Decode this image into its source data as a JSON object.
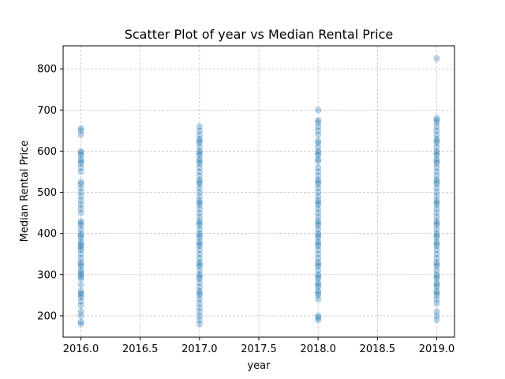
{
  "chart_data": {
    "type": "scatter",
    "title": "Scatter Plot of year vs Median Rental Price",
    "xlabel": "year",
    "ylabel": "Median Rental Price",
    "xlim": [
      1995.85,
      2019.15
    ],
    "ylim": [
      148,
      856
    ],
    "xlim_note": "",
    "x_ticks": [
      2016.0,
      2016.5,
      2017.0,
      2017.5,
      2018.0,
      2018.5,
      2019.0
    ],
    "x_tick_labels": [
      "2016.0",
      "2016.5",
      "2017.0",
      "2017.5",
      "2018.0",
      "2018.5",
      "2019.0"
    ],
    "y_ticks": [
      200,
      300,
      400,
      500,
      600,
      700,
      800
    ],
    "y_tick_labels": [
      "200",
      "300",
      "400",
      "500",
      "600",
      "700",
      "800"
    ],
    "grid": true,
    "marker_color": "#1f77b4",
    "marker_alpha": 0.3,
    "series": [
      {
        "points": [
          [
            2016,
            180
          ],
          [
            2016,
            185
          ],
          [
            2016,
            200
          ],
          [
            2016,
            210
          ],
          [
            2016,
            225
          ],
          [
            2016,
            235
          ],
          [
            2016,
            245
          ],
          [
            2016,
            250
          ],
          [
            2016,
            255
          ],
          [
            2016,
            260
          ],
          [
            2016,
            275
          ],
          [
            2016,
            290
          ],
          [
            2016,
            295
          ],
          [
            2016,
            300
          ],
          [
            2016,
            305
          ],
          [
            2016,
            310
          ],
          [
            2016,
            320
          ],
          [
            2016,
            325
          ],
          [
            2016,
            330
          ],
          [
            2016,
            340
          ],
          [
            2016,
            350
          ],
          [
            2016,
            360
          ],
          [
            2016,
            365
          ],
          [
            2016,
            370
          ],
          [
            2016,
            375
          ],
          [
            2016,
            380
          ],
          [
            2016,
            390
          ],
          [
            2016,
            395
          ],
          [
            2016,
            400
          ],
          [
            2016,
            410
          ],
          [
            2016,
            420
          ],
          [
            2016,
            425
          ],
          [
            2016,
            430
          ],
          [
            2016,
            450
          ],
          [
            2016,
            460
          ],
          [
            2016,
            470
          ],
          [
            2016,
            480
          ],
          [
            2016,
            490
          ],
          [
            2016,
            500
          ],
          [
            2016,
            510
          ],
          [
            2016,
            520
          ],
          [
            2016,
            525
          ],
          [
            2016,
            550
          ],
          [
            2016,
            560
          ],
          [
            2016,
            570
          ],
          [
            2016,
            575
          ],
          [
            2016,
            580
          ],
          [
            2016,
            590
          ],
          [
            2016,
            595
          ],
          [
            2016,
            600
          ],
          [
            2016,
            640
          ],
          [
            2016,
            650
          ],
          [
            2016,
            655
          ],
          [
            2017,
            180
          ],
          [
            2017,
            190
          ],
          [
            2017,
            200
          ],
          [
            2017,
            210
          ],
          [
            2017,
            220
          ],
          [
            2017,
            230
          ],
          [
            2017,
            240
          ],
          [
            2017,
            250
          ],
          [
            2017,
            255
          ],
          [
            2017,
            260
          ],
          [
            2017,
            270
          ],
          [
            2017,
            280
          ],
          [
            2017,
            290
          ],
          [
            2017,
            295
          ],
          [
            2017,
            300
          ],
          [
            2017,
            310
          ],
          [
            2017,
            320
          ],
          [
            2017,
            325
          ],
          [
            2017,
            330
          ],
          [
            2017,
            340
          ],
          [
            2017,
            350
          ],
          [
            2017,
            360
          ],
          [
            2017,
            370
          ],
          [
            2017,
            375
          ],
          [
            2017,
            380
          ],
          [
            2017,
            390
          ],
          [
            2017,
            395
          ],
          [
            2017,
            400
          ],
          [
            2017,
            410
          ],
          [
            2017,
            420
          ],
          [
            2017,
            425
          ],
          [
            2017,
            430
          ],
          [
            2017,
            440
          ],
          [
            2017,
            450
          ],
          [
            2017,
            460
          ],
          [
            2017,
            470
          ],
          [
            2017,
            475
          ],
          [
            2017,
            480
          ],
          [
            2017,
            490
          ],
          [
            2017,
            500
          ],
          [
            2017,
            510
          ],
          [
            2017,
            520
          ],
          [
            2017,
            525
          ],
          [
            2017,
            530
          ],
          [
            2017,
            540
          ],
          [
            2017,
            550
          ],
          [
            2017,
            560
          ],
          [
            2017,
            570
          ],
          [
            2017,
            575
          ],
          [
            2017,
            580
          ],
          [
            2017,
            590
          ],
          [
            2017,
            595
          ],
          [
            2017,
            600
          ],
          [
            2017,
            610
          ],
          [
            2017,
            620
          ],
          [
            2017,
            625
          ],
          [
            2017,
            630
          ],
          [
            2017,
            640
          ],
          [
            2017,
            650
          ],
          [
            2017,
            660
          ],
          [
            2018,
            190
          ],
          [
            2018,
            195
          ],
          [
            2018,
            200
          ],
          [
            2018,
            240
          ],
          [
            2018,
            250
          ],
          [
            2018,
            255
          ],
          [
            2018,
            260
          ],
          [
            2018,
            270
          ],
          [
            2018,
            275
          ],
          [
            2018,
            280
          ],
          [
            2018,
            290
          ],
          [
            2018,
            295
          ],
          [
            2018,
            300
          ],
          [
            2018,
            310
          ],
          [
            2018,
            320
          ],
          [
            2018,
            325
          ],
          [
            2018,
            330
          ],
          [
            2018,
            340
          ],
          [
            2018,
            350
          ],
          [
            2018,
            360
          ],
          [
            2018,
            370
          ],
          [
            2018,
            375
          ],
          [
            2018,
            380
          ],
          [
            2018,
            390
          ],
          [
            2018,
            395
          ],
          [
            2018,
            400
          ],
          [
            2018,
            410
          ],
          [
            2018,
            420
          ],
          [
            2018,
            425
          ],
          [
            2018,
            430
          ],
          [
            2018,
            440
          ],
          [
            2018,
            450
          ],
          [
            2018,
            460
          ],
          [
            2018,
            470
          ],
          [
            2018,
            475
          ],
          [
            2018,
            480
          ],
          [
            2018,
            490
          ],
          [
            2018,
            500
          ],
          [
            2018,
            510
          ],
          [
            2018,
            520
          ],
          [
            2018,
            525
          ],
          [
            2018,
            530
          ],
          [
            2018,
            540
          ],
          [
            2018,
            550
          ],
          [
            2018,
            560
          ],
          [
            2018,
            575
          ],
          [
            2018,
            580
          ],
          [
            2018,
            590
          ],
          [
            2018,
            595
          ],
          [
            2018,
            600
          ],
          [
            2018,
            610
          ],
          [
            2018,
            620
          ],
          [
            2018,
            625
          ],
          [
            2018,
            640
          ],
          [
            2018,
            650
          ],
          [
            2018,
            660
          ],
          [
            2018,
            670
          ],
          [
            2018,
            675
          ],
          [
            2018,
            700
          ],
          [
            2019,
            190
          ],
          [
            2019,
            200
          ],
          [
            2019,
            210
          ],
          [
            2019,
            230
          ],
          [
            2019,
            240
          ],
          [
            2019,
            250
          ],
          [
            2019,
            255
          ],
          [
            2019,
            260
          ],
          [
            2019,
            270
          ],
          [
            2019,
            275
          ],
          [
            2019,
            280
          ],
          [
            2019,
            290
          ],
          [
            2019,
            295
          ],
          [
            2019,
            300
          ],
          [
            2019,
            310
          ],
          [
            2019,
            320
          ],
          [
            2019,
            325
          ],
          [
            2019,
            330
          ],
          [
            2019,
            340
          ],
          [
            2019,
            350
          ],
          [
            2019,
            360
          ],
          [
            2019,
            370
          ],
          [
            2019,
            375
          ],
          [
            2019,
            380
          ],
          [
            2019,
            390
          ],
          [
            2019,
            395
          ],
          [
            2019,
            400
          ],
          [
            2019,
            410
          ],
          [
            2019,
            420
          ],
          [
            2019,
            425
          ],
          [
            2019,
            430
          ],
          [
            2019,
            440
          ],
          [
            2019,
            450
          ],
          [
            2019,
            460
          ],
          [
            2019,
            470
          ],
          [
            2019,
            475
          ],
          [
            2019,
            480
          ],
          [
            2019,
            490
          ],
          [
            2019,
            500
          ],
          [
            2019,
            510
          ],
          [
            2019,
            520
          ],
          [
            2019,
            525
          ],
          [
            2019,
            530
          ],
          [
            2019,
            540
          ],
          [
            2019,
            550
          ],
          [
            2019,
            560
          ],
          [
            2019,
            570
          ],
          [
            2019,
            575
          ],
          [
            2019,
            580
          ],
          [
            2019,
            590
          ],
          [
            2019,
            595
          ],
          [
            2019,
            600
          ],
          [
            2019,
            610
          ],
          [
            2019,
            620
          ],
          [
            2019,
            625
          ],
          [
            2019,
            630
          ],
          [
            2019,
            640
          ],
          [
            2019,
            650
          ],
          [
            2019,
            660
          ],
          [
            2019,
            670
          ],
          [
            2019,
            675
          ],
          [
            2019,
            680
          ],
          [
            2019,
            825
          ]
        ]
      }
    ]
  }
}
